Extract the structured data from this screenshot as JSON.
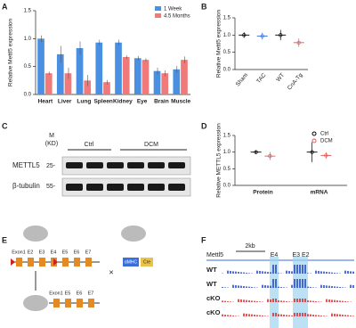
{
  "chart_data": [
    {
      "type": "bar",
      "label": "A",
      "y_label": "Relative Mettl5 expression",
      "categories": [
        "Heart",
        "Liver",
        "Lung",
        "Spleen",
        "Kidney",
        "Eye",
        "Brain",
        "Muscle"
      ],
      "series": [
        {
          "name": "1 Week",
          "color": "#4a90e2",
          "values": [
            1.0,
            0.72,
            0.83,
            0.93,
            0.93,
            0.65,
            0.42,
            0.45
          ],
          "errors": [
            0.06,
            0.15,
            0.12,
            0.05,
            0.05,
            0.04,
            0.06,
            0.06
          ]
        },
        {
          "name": "4.5 Months",
          "color": "#f07a7a",
          "values": [
            0.38,
            0.38,
            0.25,
            0.22,
            0.67,
            0.62,
            0.38,
            0.62
          ],
          "errors": [
            0.03,
            0.1,
            0.1,
            0.04,
            0.03,
            0.03,
            0.05,
            0.06
          ]
        }
      ],
      "ylim": [
        0,
        1.5
      ],
      "yticks": [
        {
          "value": 0,
          "label": "0.0"
        },
        0.5,
        {
          "value": 1,
          "label": "1.0"
        },
        1.5
      ],
      "legend": "upper right"
    },
    {
      "type": "dot",
      "label": "B",
      "y_label": "Relative Mettl5 expression",
      "categories": [
        "Sham",
        "TAC",
        "WT",
        "CnA-Tg"
      ],
      "values": [
        1.0,
        0.97,
        1.0,
        0.78
      ],
      "errors": [
        0.08,
        0.1,
        0.15,
        0.12
      ],
      "colors": [
        "#000000",
        "#3a6fd8",
        "#000000",
        "#e05555"
      ],
      "ylim": [
        0,
        1.5
      ],
      "yticks": [
        {
          "value": 0,
          "label": "0.0"
        },
        0.5,
        {
          "value": 1,
          "label": "1.0"
        },
        1.5
      ]
    },
    {
      "type": "dot",
      "label": "D",
      "y_label": "Relative METTL5 expression",
      "categories": [
        "Protein",
        "mRNA"
      ],
      "series": [
        {
          "name": "Ctrl",
          "color": "#000000",
          "values": [
            1.0,
            1.0
          ],
          "errors": [
            0.05,
            0.3
          ]
        },
        {
          "name": "DCM",
          "color": "#e05555",
          "values": [
            0.88,
            0.9
          ],
          "errors": [
            0.12,
            0.1
          ]
        }
      ],
      "ylim": [
        0,
        1.5
      ],
      "yticks": [
        {
          "value": 0,
          "label": "0.0"
        },
        0.5,
        {
          "value": 1,
          "label": "1.0"
        },
        1.5
      ],
      "legend": "upper right"
    }
  ],
  "blot": {
    "label": "C",
    "marker_header": "M",
    "marker_unit": "(KD)",
    "groups": [
      "Ctrl",
      "DCM"
    ],
    "proteins": [
      "METTL5",
      "β-tubulin"
    ],
    "markers": [
      "25-",
      "55-"
    ]
  },
  "schematic": {
    "label": "E",
    "exons_top": [
      "Exon1",
      "E2",
      "E3",
      "E4",
      "E5",
      "E6",
      "E7"
    ],
    "cross": "×",
    "promoter": "αMHC",
    "cre": "Cre",
    "exons_bottom": [
      "Exon1",
      "E5",
      "E6",
      "E7"
    ]
  },
  "tracks": {
    "label": "F",
    "gene": "Mettl5",
    "scale": "2kb",
    "exon_marks": [
      "E4",
      "E3 E2"
    ],
    "samples": [
      "WT",
      "WT",
      "cKO",
      "cKO"
    ]
  }
}
